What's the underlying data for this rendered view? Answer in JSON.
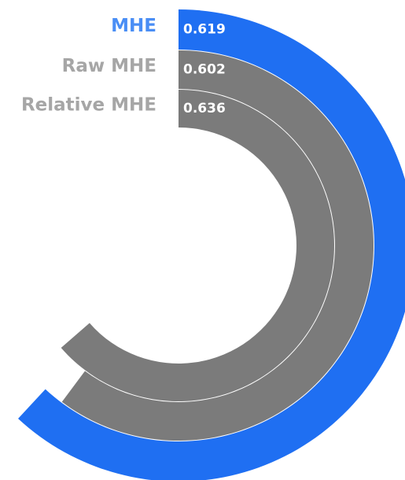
{
  "chart_data": {
    "type": "radial_bar",
    "max_value": 1,
    "series": [
      {
        "name": "MHE",
        "value": 0.619,
        "value_label": "0.619",
        "color": "#1f6ff2",
        "label_color": "#4a8ef5"
      },
      {
        "name": "Raw MHE",
        "value": 0.602,
        "value_label": "0.602",
        "color": "#7b7b7b",
        "label_color": "#a6a6a6"
      },
      {
        "name": "Relative MHE",
        "value": 0.636,
        "value_label": "0.636",
        "color": "#7b7b7b",
        "label_color": "#a6a6a6"
      }
    ]
  }
}
